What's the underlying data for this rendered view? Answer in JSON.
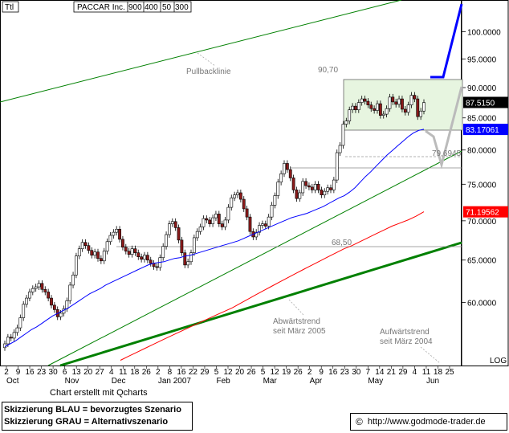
{
  "header": {
    "corner_label": "Ttl",
    "ticker_title": "PACCAR Inc.",
    "settings": [
      "900",
      "400",
      "50",
      "300"
    ]
  },
  "footer": {
    "credit": "Chart erstellt mit Qcharts",
    "legend_blue": "Skizzierung BLAU = bevorzugtes Szenario",
    "legend_gray": "Skizzierung GRAU = Alternativszenario",
    "copyright_symbol": "©",
    "url": "http://www.godmode-trader.de"
  },
  "chart_data": {
    "type": "candlestick",
    "title": "PACCAR Inc.",
    "price_axis": {
      "ticks": [
        "100.0000",
        "95.0000",
        "90.0000",
        "85.0000",
        "80.0000",
        "75.0000",
        "70.0000",
        "65.0000",
        "60.0000"
      ],
      "tick_values": [
        100,
        95,
        90,
        85,
        80,
        75,
        70,
        65,
        60
      ],
      "range": [
        54.5,
        103
      ],
      "scale_label": "LOG"
    },
    "time_axis": {
      "day_labels": [
        "2",
        "9",
        "16",
        "23",
        "30",
        "6",
        "13",
        "20",
        "27",
        "4",
        "11",
        "18",
        "26",
        "2",
        "8",
        "16",
        "22",
        "29",
        "5",
        "12",
        "20",
        "26",
        "5",
        "12",
        "19",
        "26",
        "2",
        "9",
        "16",
        "23",
        "30",
        "7",
        "14",
        "21",
        "29",
        "4",
        "11",
        "18",
        "25"
      ],
      "month_labels": [
        "Oct",
        "Nov",
        "Dec",
        "Jan 2007",
        "Feb",
        "Mar",
        "Apr",
        "May",
        "Jun"
      ]
    },
    "price_flags": [
      {
        "value": "87.5150",
        "price": 87.515,
        "color": "#000000"
      },
      {
        "value": "83.17061",
        "price": 83.17,
        "color": "#0000ff"
      },
      {
        "value": "71.19562",
        "price": 71.196,
        "color": "#ff0000"
      }
    ],
    "annotations": {
      "pullback": "Pullbacklinie",
      "level_upper": "90,70",
      "level_mid": "79,6945",
      "level_lower": "68,50",
      "downtrend": [
        "Abwärtstrend",
        "seit März 2005"
      ],
      "uptrend": [
        "Aufwärtstrend",
        "seit März 2004"
      ]
    },
    "consolidation_box": {
      "top": 90.7,
      "bottom": 83.2
    },
    "price_series": [
      55.5,
      56.2,
      56.1,
      56.7,
      57.2,
      58.3,
      59.8,
      60.5,
      61.2,
      61.6,
      61.8,
      62.2,
      61.5,
      61.2,
      60.5,
      59.7,
      59.2,
      58.4,
      58.8,
      59.3,
      60.2,
      62.0,
      63.2,
      65.5,
      66.4,
      67.2,
      66.8,
      66.2,
      65.6,
      66.0,
      65.2,
      64.9,
      66.1,
      67.3,
      68.1,
      68.5,
      68.9,
      67.6,
      66.6,
      66.1,
      65.7,
      66.4,
      65.9,
      65.4,
      65.1,
      65.6,
      65.0,
      64.6,
      64.2,
      64.1,
      65.3,
      66.7,
      68.2,
      69.6,
      69.9,
      69.1,
      67.5,
      65.9,
      64.4,
      64.8,
      65.9,
      67.8,
      68.6,
      69.2,
      70.3,
      70.1,
      69.6,
      70.4,
      70.9,
      69.6,
      69.2,
      70.1,
      71.8,
      73.1,
      73.5,
      73.8,
      72.9,
      71.6,
      70.5,
      68.6,
      67.9,
      68.5,
      69.4,
      69.6,
      69.3,
      70.5,
      72.1,
      73.4,
      75.3,
      76.5,
      78.0,
      77.1,
      75.9,
      74.2,
      73.0,
      73.8,
      75.4,
      74.8,
      74.6,
      74.2,
      75.0,
      74.2,
      73.5,
      74.0,
      74.5,
      74.2,
      75.6,
      79.6,
      80.7,
      84.0,
      84.5,
      86.3,
      86.9,
      86.3,
      87.5,
      88.1,
      87.7,
      87.1,
      86.5,
      86.2,
      87.3,
      85.4,
      85.6,
      86.5,
      88.4,
      87.6,
      87.2,
      88.1,
      86.4,
      85.9,
      87.1,
      88.7,
      88.1,
      85.2,
      86.1,
      87.5
    ],
    "moving_average_blue": [
      55.2,
      55.5,
      55.8,
      56.2,
      56.6,
      57.0,
      57.3,
      57.7,
      58.1,
      58.5,
      58.8,
      59.1,
      59.4,
      59.8,
      60.2,
      60.6,
      61.0,
      61.3,
      61.6,
      62.0,
      62.3,
      62.6,
      62.9,
      63.2,
      63.5,
      63.8,
      64.1,
      64.4,
      64.6,
      64.7,
      64.8,
      65.0,
      65.2,
      65.3,
      65.5,
      65.6,
      65.8,
      66.0,
      66.2,
      66.4,
      66.6,
      66.8,
      67.0,
      67.2,
      67.4,
      67.7,
      68.0,
      68.3,
      68.6,
      68.9,
      69.2,
      69.5,
      69.8,
      70.1,
      70.4,
      70.6,
      70.8,
      71.0,
      71.3,
      71.6,
      71.9,
      72.3,
      72.7,
      73.1,
      73.4,
      73.9,
      74.5,
      75.3,
      76.1,
      76.8,
      77.6,
      78.4,
      79.2,
      79.9,
      80.6,
      81.3,
      82.0,
      82.6,
      83.0,
      83.2
    ],
    "moving_average_red": [
      53.8,
      54.2,
      54.6,
      55.0,
      55.4,
      55.8,
      56.2,
      56.6,
      57.0,
      57.4,
      57.8,
      58.2,
      58.6,
      59.0,
      59.4,
      59.9,
      60.4,
      60.9,
      61.4,
      61.9,
      62.4,
      62.9,
      63.4,
      63.9,
      64.4,
      64.9,
      65.4,
      65.9,
      66.4,
      66.8,
      67.3,
      67.8,
      68.3,
      68.8,
      69.3,
      69.7,
      70.1,
      70.6,
      71.2
    ]
  }
}
